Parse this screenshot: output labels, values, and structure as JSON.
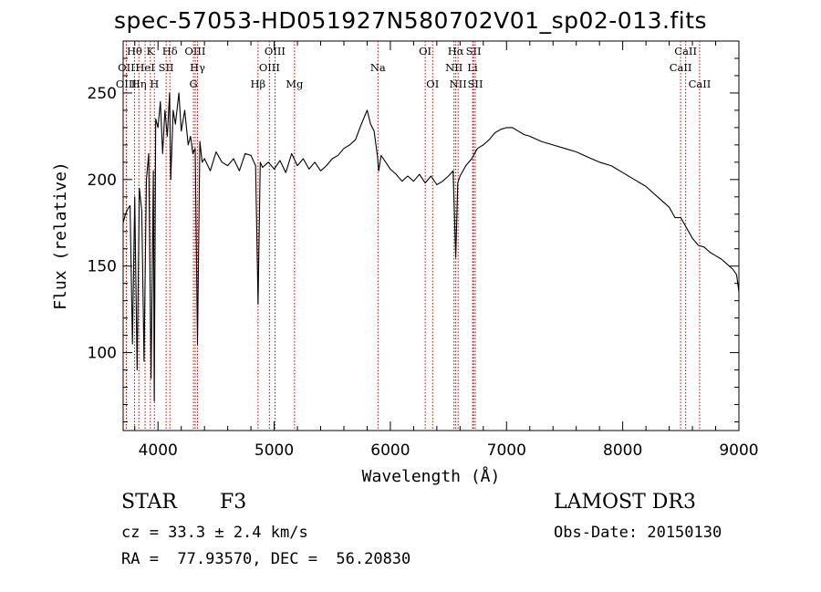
{
  "chart_data": {
    "type": "line",
    "title": "spec-57053-HD051927N580702V01_sp02-013.fits",
    "xlabel": "Wavelength (Å)",
    "ylabel": "Flux (relative)",
    "xlim": [
      3700,
      9000
    ],
    "ylim": [
      55,
      280
    ],
    "xticks": [
      4000,
      5000,
      6000,
      7000,
      8000,
      9000
    ],
    "yticks": [
      100,
      150,
      200,
      250
    ],
    "series": [
      {
        "name": "spectrum",
        "color": "#000000",
        "x": [
          3700,
          3720,
          3740,
          3760,
          3780,
          3800,
          3820,
          3840,
          3860,
          3880,
          3900,
          3920,
          3940,
          3960,
          3968,
          3980,
          4000,
          4020,
          4040,
          4060,
          4080,
          4100,
          4110,
          4130,
          4150,
          4180,
          4200,
          4230,
          4260,
          4280,
          4300,
          4320,
          4340,
          4360,
          4380,
          4400,
          4450,
          4500,
          4550,
          4600,
          4650,
          4700,
          4750,
          4800,
          4840,
          4861,
          4880,
          4900,
          4950,
          5000,
          5050,
          5100,
          5150,
          5200,
          5250,
          5300,
          5350,
          5400,
          5450,
          5500,
          5550,
          5600,
          5650,
          5700,
          5750,
          5800,
          5830,
          5860,
          5890,
          5900,
          5920,
          5950,
          6000,
          6050,
          6100,
          6150,
          6200,
          6250,
          6300,
          6350,
          6400,
          6450,
          6500,
          6540,
          6563,
          6580,
          6600,
          6650,
          6700,
          6750,
          6800,
          6850,
          6900,
          6950,
          7000,
          7050,
          7100,
          7150,
          7200,
          7300,
          7400,
          7500,
          7600,
          7700,
          7800,
          7900,
          8000,
          8100,
          8200,
          8300,
          8400,
          8450,
          8500,
          8550,
          8600,
          8650,
          8700,
          8750,
          8800,
          8850,
          8900,
          8950,
          8980,
          9000
        ],
        "y": [
          175,
          180,
          183,
          185,
          105,
          190,
          90,
          195,
          182,
          95,
          200,
          215,
          85,
          205,
          72,
          235,
          230,
          245,
          215,
          240,
          225,
          250,
          200,
          240,
          232,
          250,
          228,
          240,
          220,
          225,
          215,
          218,
          105,
          222,
          210,
          212,
          205,
          216,
          210,
          208,
          212,
          205,
          215,
          214,
          208,
          128,
          210,
          207,
          210,
          206,
          211,
          204,
          215,
          208,
          212,
          206,
          210,
          205,
          208,
          212,
          214,
          218,
          220,
          223,
          232,
          240,
          232,
          228,
          213,
          205,
          214,
          211,
          206,
          203,
          199,
          202,
          199,
          203,
          198,
          202,
          197,
          199,
          202,
          205,
          155,
          198,
          202,
          208,
          212,
          218,
          220,
          223,
          227,
          229,
          230,
          230,
          228,
          226,
          225,
          222,
          220,
          218,
          216,
          213,
          210,
          208,
          204,
          200,
          196,
          190,
          184,
          178,
          178,
          172,
          166,
          162,
          161,
          158,
          156,
          154,
          151,
          148,
          145,
          135
        ]
      }
    ],
    "lines": [
      {
        "label": "Hθ",
        "wavelength": 3798,
        "row": 1
      },
      {
        "label": "OII",
        "wavelength": 3727,
        "row": 2
      },
      {
        "label": "OIII",
        "wavelength": 3727,
        "row": 3
      },
      {
        "label": "Hη",
        "wavelength": 3835,
        "row": 3
      },
      {
        "label": "HeI",
        "wavelength": 3889,
        "row": 2
      },
      {
        "label": "K",
        "wavelength": 3934,
        "row": 1
      },
      {
        "label": "H",
        "wavelength": 3969,
        "row": 3
      },
      {
        "label": "SII",
        "wavelength": 4070,
        "row": 2
      },
      {
        "label": "Hδ",
        "wavelength": 4102,
        "row": 1
      },
      {
        "label": "OIII",
        "wavelength": 4320,
        "row": 1
      },
      {
        "label": "Hγ",
        "wavelength": 4340,
        "row": 2
      },
      {
        "label": "G",
        "wavelength": 4305,
        "row": 3
      },
      {
        "label": "Hβ",
        "wavelength": 4861,
        "row": 3
      },
      {
        "label": "OIII",
        "wavelength": 5007,
        "row": 1
      },
      {
        "label": "OIII",
        "wavelength": 4959,
        "row": 2
      },
      {
        "label": "Mg",
        "wavelength": 5175,
        "row": 3
      },
      {
        "label": "Na",
        "wavelength": 5893,
        "row": 2
      },
      {
        "label": "OI",
        "wavelength": 6300,
        "row": 1
      },
      {
        "label": "OI",
        "wavelength": 6364,
        "row": 3
      },
      {
        "label": "Hα",
        "wavelength": 6563,
        "row": 1
      },
      {
        "label": "SII",
        "wavelength": 6716,
        "row": 1
      },
      {
        "label": "NII",
        "wavelength": 6548,
        "row": 2
      },
      {
        "label": "Li",
        "wavelength": 6708,
        "row": 2
      },
      {
        "label": "NII",
        "wavelength": 6583,
        "row": 3
      },
      {
        "label": "SII",
        "wavelength": 6731,
        "row": 3
      },
      {
        "label": "CaII",
        "wavelength": 8542,
        "row": 1
      },
      {
        "label": "CaII",
        "wavelength": 8498,
        "row": 2
      },
      {
        "label": "CaII",
        "wavelength": 8662,
        "row": 3
      }
    ],
    "line_color": "#c00000"
  },
  "info": {
    "object_class": "STAR",
    "subclass": "F3",
    "survey": "LAMOST DR3",
    "redshift": "cz = 33.3 ± 2.4 km/s",
    "obs_date": "Obs-Date: 20150130",
    "coords": "RA =  77.93570, DEC =  56.20830"
  }
}
